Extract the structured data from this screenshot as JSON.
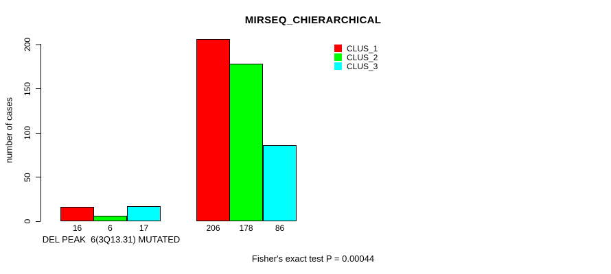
{
  "chart_data": {
    "type": "bar",
    "title": "MIRSEQ_CHIERARCHICAL",
    "ylabel": "number of cases",
    "xlabel": "DEL PEAK  6(3Q13.31) MUTATED",
    "annotation": "Fisher's exact test P = 0.00044",
    "ylim": [
      0,
      200
    ],
    "yticks": [
      0,
      50,
      100,
      150,
      200
    ],
    "grid": false,
    "legend_position": "top-right",
    "series": [
      {
        "name": "CLUS_1",
        "color": "#ff0000"
      },
      {
        "name": "CLUS_2",
        "color": "#00ff00"
      },
      {
        "name": "CLUS_3",
        "color": "#00ffff"
      }
    ],
    "groups": [
      {
        "label": "DEL PEAK  6(3Q13.31) MUTATED",
        "values": [
          16,
          6,
          17
        ]
      },
      {
        "label": "",
        "values": [
          206,
          178,
          86
        ]
      }
    ],
    "bar_value_labels": [
      16,
      6,
      17,
      206,
      178,
      86
    ]
  },
  "colors": {
    "background": "#ffffff",
    "axis": "#000000",
    "text": "#000000"
  }
}
